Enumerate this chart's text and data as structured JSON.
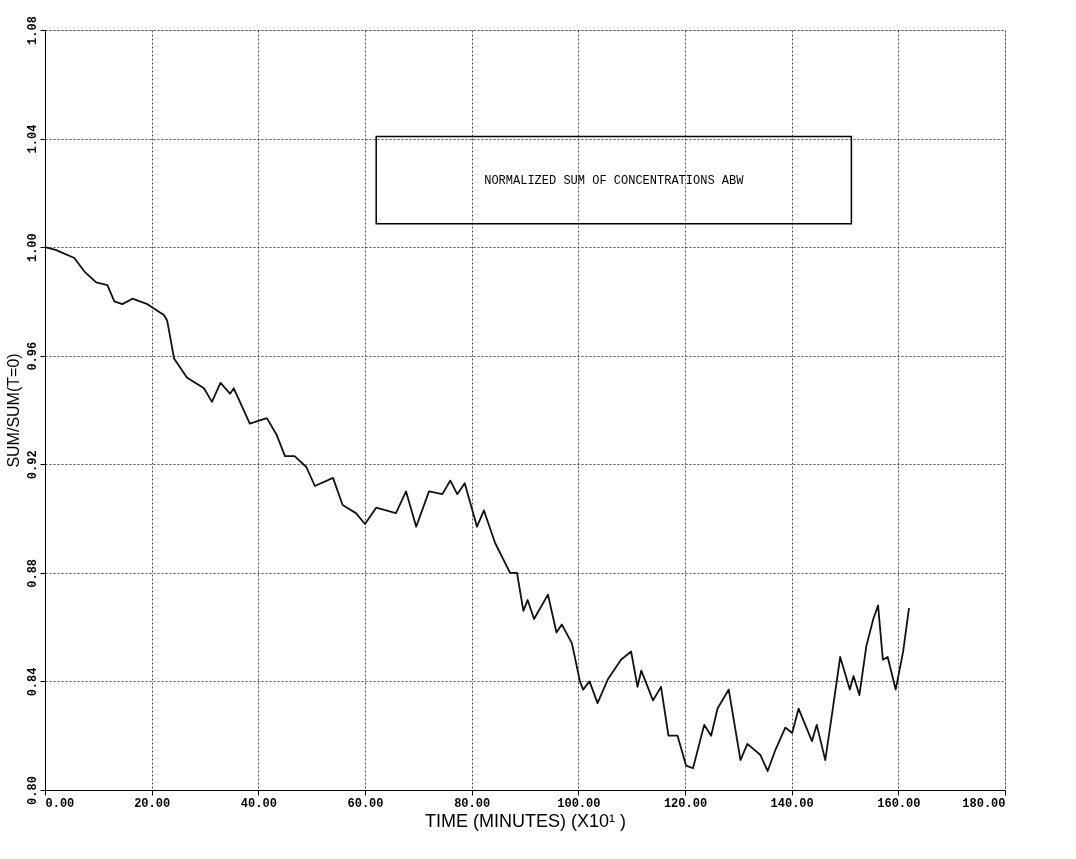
{
  "chart_data": {
    "type": "line",
    "title": "NORMALIZED SUM OF CONCENTRATIONS      ABW",
    "xlabel": "TIME (MINUTES) (X10¹ )",
    "ylabel": "SUM/SUM(T=0)",
    "xlim": [
      0,
      180
    ],
    "ylim": [
      0.8,
      1.08
    ],
    "xticks": [
      {
        "value": 0,
        "label": "0.00"
      },
      {
        "value": 20,
        "label": "20.00"
      },
      {
        "value": 40,
        "label": "40.00"
      },
      {
        "value": 60,
        "label": "60.00"
      },
      {
        "value": 80,
        "label": "80.00"
      },
      {
        "value": 100,
        "label": "100.00"
      },
      {
        "value": 120,
        "label": "120.00"
      },
      {
        "value": 140,
        "label": "140.00"
      },
      {
        "value": 160,
        "label": "160.00"
      },
      {
        "value": 180,
        "label": "180.00"
      }
    ],
    "yticks": [
      {
        "value": 0.8,
        "label": "0.80"
      },
      {
        "value": 0.84,
        "label": "0.84"
      },
      {
        "value": 0.88,
        "label": "0.88"
      },
      {
        "value": 0.92,
        "label": "0.92"
      },
      {
        "value": 0.96,
        "label": "0.96"
      },
      {
        "value": 1.0,
        "label": "1.00"
      },
      {
        "value": 1.04,
        "label": "1.04"
      },
      {
        "value": 1.08,
        "label": "1.08"
      }
    ],
    "grid": true,
    "line_style": "solid",
    "marker": "none",
    "x": [
      0,
      2,
      5.5,
      7.4,
      9.6,
      11.7,
      13.0,
      14.5,
      16.4,
      19.2,
      22.3,
      22.9,
      24.2,
      26.6,
      29.8,
      31.3,
      32.9,
      34.7,
      35.4,
      38.4,
      41.6,
      43.4,
      45.0,
      46.8,
      49.0,
      50.6,
      54.0,
      55.8,
      58.3,
      60.0,
      62.1,
      65.8,
      67.7,
      69.6,
      72.0,
      74.5,
      76.0,
      77.3,
      78.7,
      81.0,
      82.3,
      84.4,
      87.2,
      88.5,
      89.7,
      90.5,
      91.7,
      94.3,
      95.9,
      96.9,
      98.8,
      100.3,
      100.9,
      102.1,
      103.6,
      105.6,
      108.0,
      109.9,
      111.1,
      111.8,
      114.0,
      115.5,
      116.9,
      118.6,
      120.2,
      121.5,
      123.6,
      124.9,
      126.1,
      128.2,
      130.4,
      131.7,
      134.1,
      135.5,
      137.0,
      138.8,
      140.1,
      141.3,
      143.8,
      144.7,
      146.3,
      147.5,
      149.1,
      150.9,
      151.6,
      152.7,
      154.0,
      155.3,
      156.2,
      157.1,
      158.0,
      159.5,
      160.9,
      162.0
    ],
    "series": [
      {
        "color": "#111111",
        "values": [
          1.0,
          0.999,
          0.996,
          0.991,
          0.987,
          0.986,
          0.98,
          0.979,
          0.981,
          0.979,
          0.975,
          0.973,
          0.959,
          0.952,
          0.948,
          0.943,
          0.95,
          0.946,
          0.948,
          0.935,
          0.937,
          0.931,
          0.923,
          0.923,
          0.919,
          0.912,
          0.915,
          0.905,
          0.902,
          0.898,
          0.904,
          0.902,
          0.91,
          0.897,
          0.91,
          0.909,
          0.914,
          0.909,
          0.913,
          0.897,
          0.903,
          0.891,
          0.88,
          0.88,
          0.866,
          0.87,
          0.863,
          0.872,
          0.858,
          0.861,
          0.854,
          0.84,
          0.837,
          0.84,
          0.832,
          0.841,
          0.848,
          0.851,
          0.838,
          0.844,
          0.833,
          0.838,
          0.82,
          0.82,
          0.809,
          0.808,
          0.824,
          0.82,
          0.83,
          0.837,
          0.811,
          0.817,
          0.813,
          0.807,
          0.815,
          0.823,
          0.821,
          0.83,
          0.818,
          0.824,
          0.811,
          0.827,
          0.849,
          0.837,
          0.842,
          0.835,
          0.853,
          0.863,
          0.868,
          0.848,
          0.849,
          0.837,
          0.851,
          0.867
        ]
      }
    ]
  }
}
